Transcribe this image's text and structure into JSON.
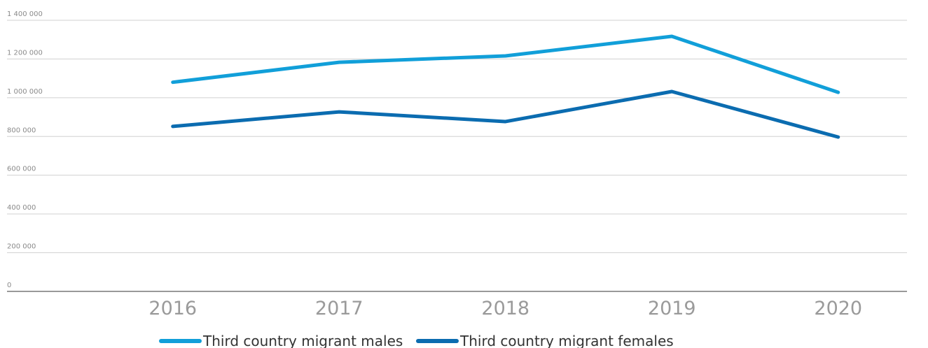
{
  "chart_data": {
    "type": "line",
    "categories": [
      "2016",
      "2017",
      "2018",
      "2019",
      "2020"
    ],
    "series": [
      {
        "name": "Third country migrant males",
        "color": "#119fd9",
        "values": [
          1080000,
          1183000,
          1216000,
          1317000,
          1028000
        ]
      },
      {
        "name": "Third country migrant females",
        "color": "#0b6cb0",
        "values": [
          852000,
          927000,
          877000,
          1032000,
          797000
        ]
      }
    ],
    "ylim": [
      0,
      1400000
    ],
    "yticks": [
      0,
      {
        "value": 200000,
        "label": "200 000"
      },
      {
        "value": 400000,
        "label": "400 000"
      },
      {
        "value": 600000,
        "label": "600 000"
      },
      {
        "value": 800000,
        "label": "800 000"
      },
      {
        "value": 1000000,
        "label": "1 000 000"
      },
      {
        "value": 1200000,
        "label": "1 200 000"
      },
      {
        "value": 1400000,
        "label": "1 400 000"
      }
    ],
    "grid": true
  }
}
